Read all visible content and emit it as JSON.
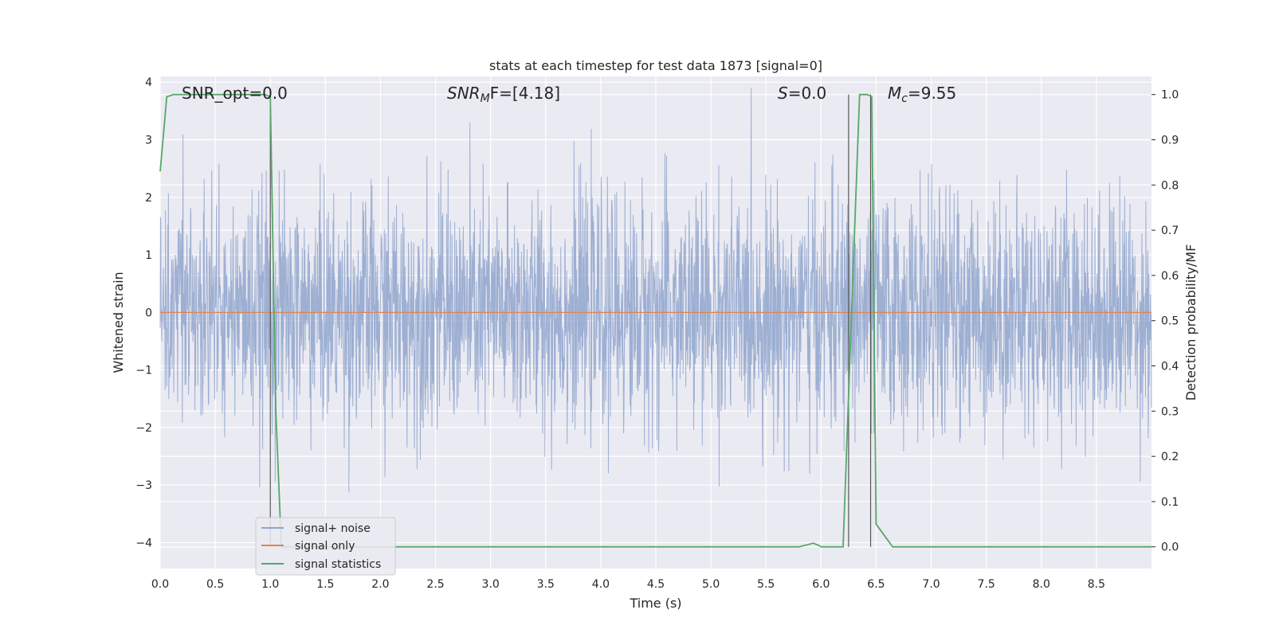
{
  "chart_data": {
    "type": "line",
    "title": "stats at each timestep for test data 1873 [signal=0]",
    "xlabel": "Time (s)",
    "ylabel_left": "Whitened strain",
    "ylabel_right": "Detection probability/MF",
    "xlim": [
      0,
      9.0
    ],
    "ylim_left": [
      -4.45,
      4.1
    ],
    "ylim_right": [
      -0.048,
      1.04
    ],
    "x_ticks": [
      "0.0",
      "0.5",
      "1.0",
      "1.5",
      "2.0",
      "2.5",
      "3.0",
      "3.5",
      "4.0",
      "4.5",
      "5.0",
      "5.5",
      "6.0",
      "6.5",
      "7.0",
      "7.5",
      "8.0",
      "8.5"
    ],
    "y_ticks_left": [
      "4",
      "3",
      "2",
      "1",
      "0",
      "−1",
      "−2",
      "−3",
      "−4"
    ],
    "y_ticks_right": [
      "1.0",
      "0.9",
      "0.8",
      "0.7",
      "0.6",
      "0.5",
      "0.4",
      "0.3",
      "0.2",
      "0.1",
      "0.0"
    ],
    "grid": true,
    "legend_position": "lower-left",
    "annotations": {
      "snr_opt": "SNR_opt=0.0",
      "snr_mf_base": "SNR",
      "snr_mf_sub": "M",
      "snr_mf_rest": "F=[4.18]",
      "s_label": "S",
      "s_value": "=0.0",
      "mc_label": "M",
      "mc_sub": "c",
      "mc_value": "=9.55"
    },
    "series": [
      {
        "name": "signal+ noise",
        "color": "#8fa4cc",
        "axis": "left",
        "description_values": "whitened Gaussian noise, approx between -4 and 3.9"
      },
      {
        "name": "signal only",
        "color": "#dd8452",
        "axis": "left",
        "x": [
          0,
          9.0
        ],
        "y": [
          0,
          0
        ]
      },
      {
        "name": "signal statistics",
        "color": "#55a868",
        "axis": "right",
        "x": [
          0.0,
          0.06,
          0.12,
          0.25,
          0.5,
          0.75,
          0.95,
          1.0,
          1.05,
          1.1,
          2.0,
          3.0,
          4.0,
          5.0,
          5.8,
          5.85,
          5.93,
          5.98,
          6.0,
          6.1,
          6.2,
          6.3,
          6.35,
          6.42,
          6.46,
          6.5,
          6.56,
          6.65,
          7.0,
          8.0,
          9.0
        ],
        "y": [
          0.83,
          0.995,
          1.0,
          1.0,
          1.0,
          1.0,
          1.0,
          0.995,
          0.3,
          0.0,
          0.0,
          0.0,
          0.0,
          0.0,
          0.0,
          0.003,
          0.008,
          0.003,
          0.0,
          0.0,
          0.0,
          0.67,
          1.0,
          1.0,
          0.995,
          0.05,
          0.03,
          0.0,
          0.0,
          0.0,
          0.0
        ]
      }
    ],
    "vertical_lines_x": [
      1.0,
      6.25,
      6.45
    ]
  }
}
